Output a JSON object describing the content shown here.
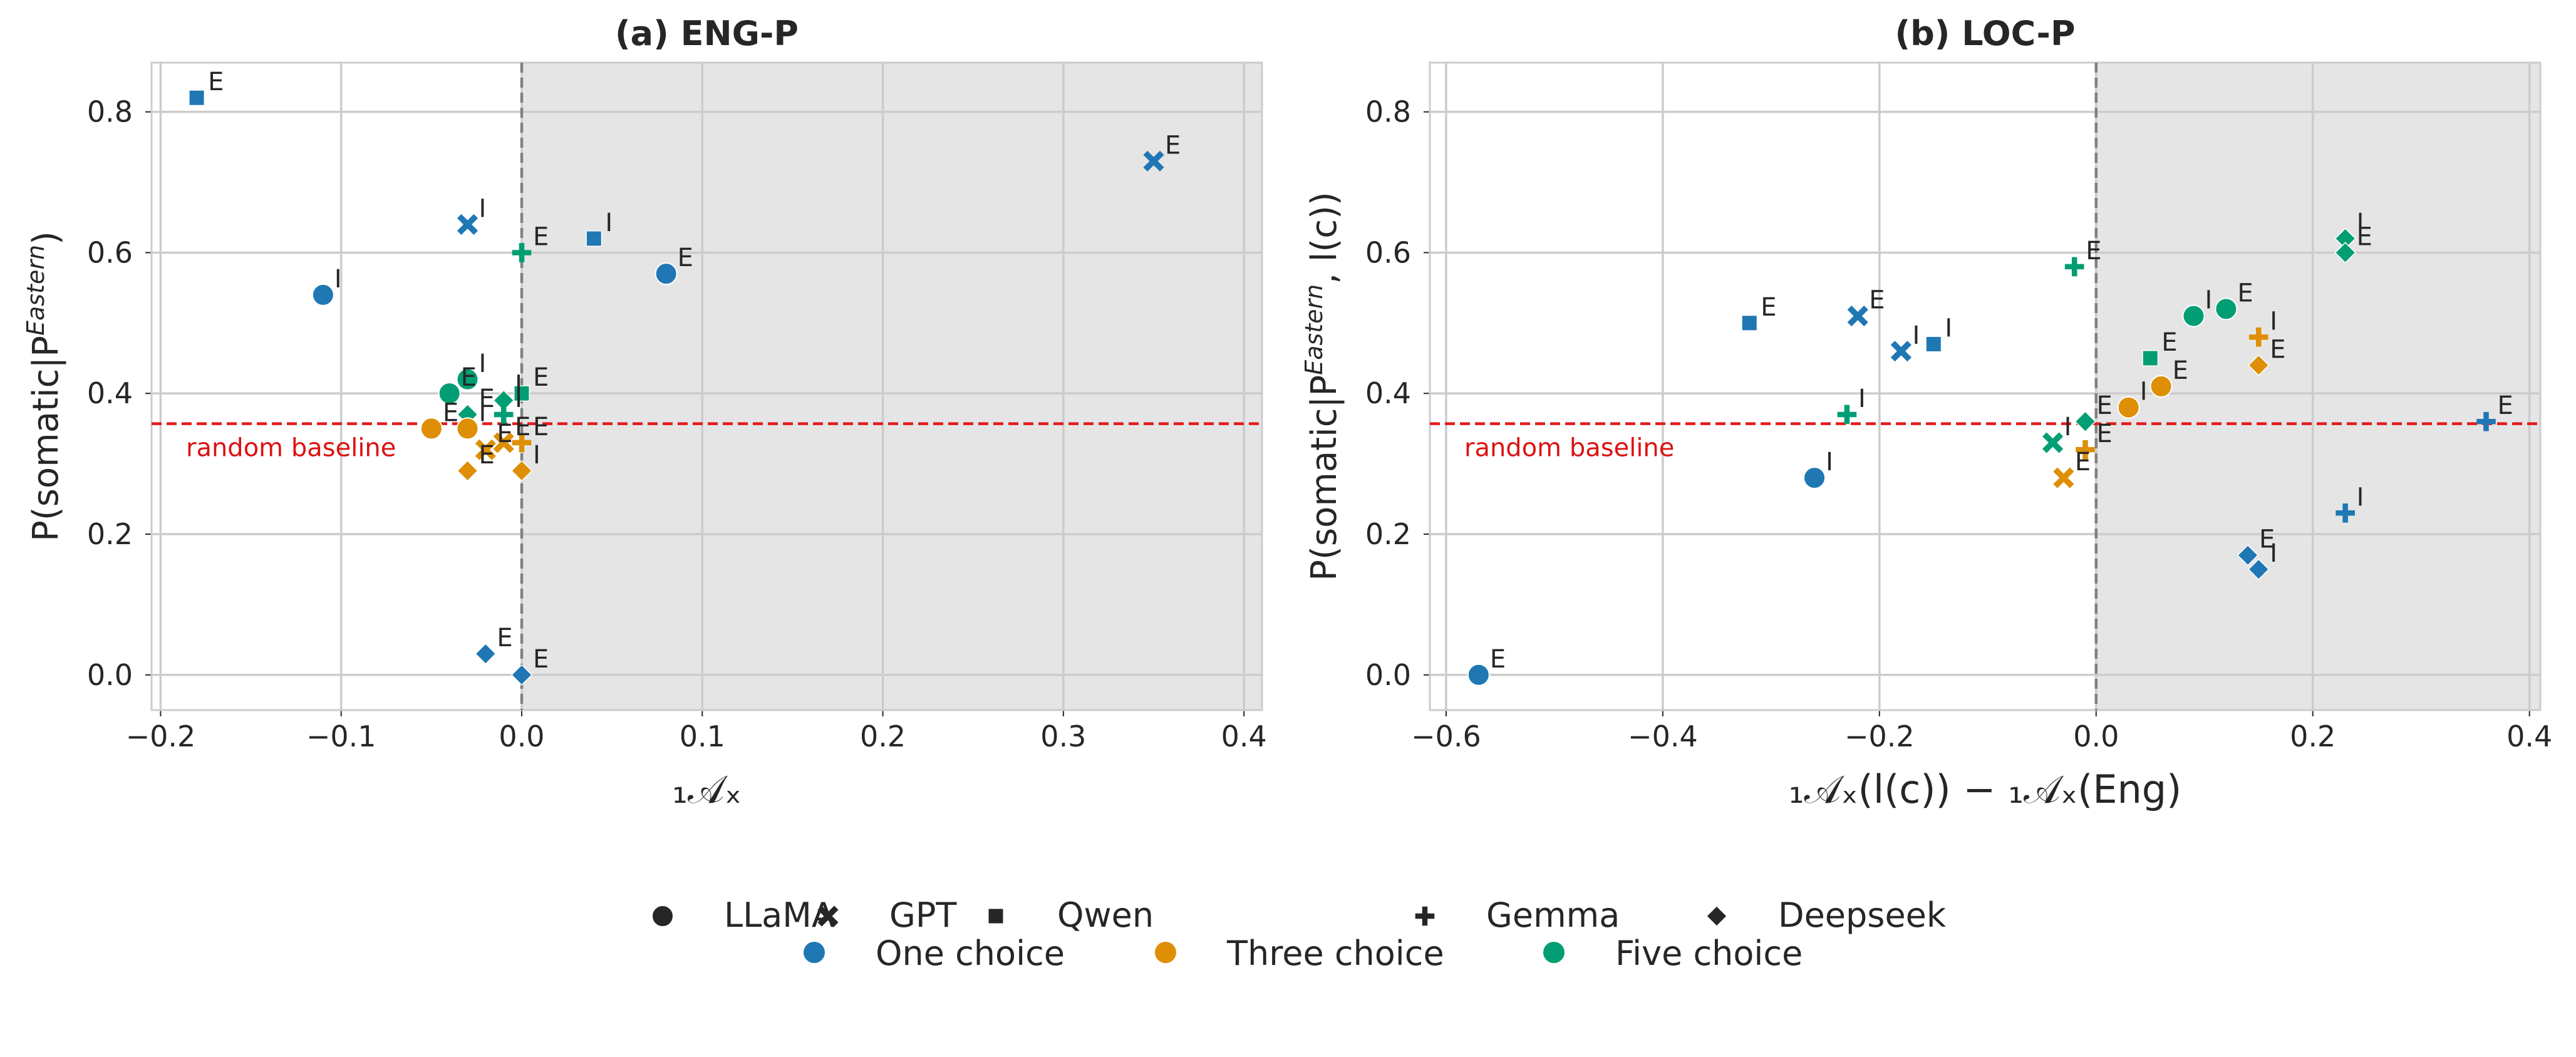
{
  "colors": {
    "one_choice": "#1f77b4",
    "three_choice": "#de8f05",
    "five_choice": "#029e73",
    "baseline": "#e41a1c",
    "shade": "#e5e5e5",
    "grid": "#cccccc",
    "text": "#262626"
  },
  "legend": {
    "models": [
      {
        "label": "LLaMA",
        "marker": "circle"
      },
      {
        "label": "GPT",
        "marker": "x"
      },
      {
        "label": "Qwen",
        "marker": "square"
      },
      {
        "label": "Gemma",
        "marker": "plus"
      },
      {
        "label": "Deepseek",
        "marker": "diamond"
      }
    ],
    "choices": [
      {
        "label": "One choice",
        "color": "#1f77b4"
      },
      {
        "label": "Three choice",
        "color": "#de8f05"
      },
      {
        "label": "Five choice",
        "color": "#029e73"
      }
    ]
  },
  "chart_data": [
    {
      "type": "scatter",
      "title": "(a) ENG-P",
      "xlabel": "₁𝒜ₓ",
      "ylabel": "P(somatic|P^Eastern)",
      "ylabel_main": "P(somatic|P",
      "ylabel_sup": "Eastern",
      "ylabel_tail": ")",
      "xlim": [
        -0.205,
        0.41
      ],
      "ylim": [
        -0.05,
        0.87
      ],
      "xticks": [
        -0.2,
        -0.1,
        0.0,
        0.1,
        0.2,
        0.3,
        0.4
      ],
      "xtick_labels": [
        "−0.2",
        "−0.1",
        "0.0",
        "0.1",
        "0.2",
        "0.3",
        "0.4"
      ],
      "yticks": [
        0.0,
        0.2,
        0.4,
        0.6,
        0.8
      ],
      "ytick_labels": [
        "0.0",
        "0.2",
        "0.4",
        "0.6",
        "0.8"
      ],
      "shaded_from_x": 0.0,
      "vline_x": 0.0,
      "baseline_y": 0.357,
      "baseline_label": "random baseline",
      "points": [
        {
          "model": "Qwen",
          "choice": "one",
          "x": -0.18,
          "y": 0.82,
          "label": "E"
        },
        {
          "model": "GPT",
          "choice": "one",
          "x": 0.35,
          "y": 0.73,
          "label": "E"
        },
        {
          "model": "GPT",
          "choice": "one",
          "x": -0.03,
          "y": 0.64,
          "label": "I"
        },
        {
          "model": "Qwen",
          "choice": "one",
          "x": 0.04,
          "y": 0.62,
          "label": "I"
        },
        {
          "model": "Gemma",
          "choice": "five",
          "x": 0.0,
          "y": 0.6,
          "label": "E"
        },
        {
          "model": "LLaMA",
          "choice": "one",
          "x": 0.08,
          "y": 0.57,
          "label": "E"
        },
        {
          "model": "LLaMA",
          "choice": "one",
          "x": -0.11,
          "y": 0.54,
          "label": "I"
        },
        {
          "model": "LLaMA",
          "choice": "five",
          "x": -0.03,
          "y": 0.42,
          "label": "I"
        },
        {
          "model": "LLaMA",
          "choice": "five",
          "x": -0.04,
          "y": 0.4,
          "label": "E"
        },
        {
          "model": "Qwen",
          "choice": "five",
          "x": 0.0,
          "y": 0.4,
          "label": "E"
        },
        {
          "model": "Deepseek",
          "choice": "five",
          "x": -0.01,
          "y": 0.39,
          "label": "I"
        },
        {
          "model": "Deepseek",
          "choice": "five",
          "x": -0.03,
          "y": 0.37,
          "label": "E"
        },
        {
          "model": "Gemma",
          "choice": "five",
          "x": -0.01,
          "y": 0.37,
          "label": "I"
        },
        {
          "model": "LLaMA",
          "choice": "three",
          "x": -0.05,
          "y": 0.35,
          "label": "E"
        },
        {
          "model": "LLaMA",
          "choice": "three",
          "x": -0.03,
          "y": 0.35,
          "label": "I"
        },
        {
          "model": "Gemma",
          "choice": "three",
          "x": 0.0,
          "y": 0.33,
          "label": "E"
        },
        {
          "model": "GPT",
          "choice": "three",
          "x": -0.01,
          "y": 0.33,
          "label": "E"
        },
        {
          "model": "GPT",
          "choice": "three",
          "x": -0.02,
          "y": 0.32,
          "label": "E"
        },
        {
          "model": "Deepseek",
          "choice": "three",
          "x": -0.03,
          "y": 0.29,
          "label": "E"
        },
        {
          "model": "Deepseek",
          "choice": "three",
          "x": 0.0,
          "y": 0.29,
          "label": "I"
        },
        {
          "model": "Deepseek",
          "choice": "one",
          "x": -0.02,
          "y": 0.03,
          "label": "E"
        },
        {
          "model": "Deepseek",
          "choice": "one",
          "x": 0.0,
          "y": 0.0,
          "label": "E"
        }
      ]
    },
    {
      "type": "scatter",
      "title": "(b) LOC-P",
      "xlabel": "₁𝒜ₓ(l(c)) − ₁𝒜ₓ(Eng)",
      "ylabel": "P(somatic|P^Eastern, l(c))",
      "ylabel_main": "P(somatic|P",
      "ylabel_sup": "Eastern",
      "ylabel_tail": ", l(c))",
      "xlim": [
        -0.615,
        0.41
      ],
      "ylim": [
        -0.05,
        0.87
      ],
      "xticks": [
        -0.6,
        -0.4,
        -0.2,
        0.0,
        0.2,
        0.4
      ],
      "xtick_labels": [
        "−0.6",
        "−0.4",
        "−0.2",
        "0.0",
        "0.2",
        "0.4"
      ],
      "yticks": [
        0.0,
        0.2,
        0.4,
        0.6,
        0.8
      ],
      "ytick_labels": [
        "0.0",
        "0.2",
        "0.4",
        "0.6",
        "0.8"
      ],
      "shaded_from_x": 0.0,
      "vline_x": 0.0,
      "baseline_y": 0.357,
      "baseline_label": "random baseline",
      "points": [
        {
          "model": "Deepseek",
          "choice": "five",
          "x": 0.23,
          "y": 0.62,
          "label": "I"
        },
        {
          "model": "Deepseek",
          "choice": "five",
          "x": 0.23,
          "y": 0.6,
          "label": "E"
        },
        {
          "model": "Gemma",
          "choice": "five",
          "x": -0.02,
          "y": 0.58,
          "label": "E"
        },
        {
          "model": "LLaMA",
          "choice": "five",
          "x": 0.12,
          "y": 0.52,
          "label": "E"
        },
        {
          "model": "LLaMA",
          "choice": "five",
          "x": 0.09,
          "y": 0.51,
          "label": "I"
        },
        {
          "model": "GPT",
          "choice": "one",
          "x": -0.22,
          "y": 0.51,
          "label": "E"
        },
        {
          "model": "Qwen",
          "choice": "one",
          "x": -0.32,
          "y": 0.5,
          "label": "E"
        },
        {
          "model": "Gemma",
          "choice": "three",
          "x": 0.15,
          "y": 0.48,
          "label": "I"
        },
        {
          "model": "Qwen",
          "choice": "one",
          "x": -0.15,
          "y": 0.47,
          "label": "I"
        },
        {
          "model": "GPT",
          "choice": "one",
          "x": -0.18,
          "y": 0.46,
          "label": "I"
        },
        {
          "model": "Qwen",
          "choice": "five",
          "x": 0.05,
          "y": 0.45,
          "label": "E"
        },
        {
          "model": "Deepseek",
          "choice": "three",
          "x": 0.15,
          "y": 0.44,
          "label": "E"
        },
        {
          "model": "LLaMA",
          "choice": "three",
          "x": 0.06,
          "y": 0.41,
          "label": "E"
        },
        {
          "model": "LLaMA",
          "choice": "three",
          "x": 0.03,
          "y": 0.38,
          "label": "I"
        },
        {
          "model": "Gemma",
          "choice": "five",
          "x": -0.23,
          "y": 0.37,
          "label": "I"
        },
        {
          "model": "Deepseek",
          "choice": "five",
          "x": -0.01,
          "y": 0.36,
          "label": "E"
        },
        {
          "model": "Gemma",
          "choice": "one",
          "x": 0.36,
          "y": 0.36,
          "label": "E"
        },
        {
          "model": "GPT",
          "choice": "five",
          "x": -0.04,
          "y": 0.33,
          "label": "I"
        },
        {
          "model": "Gemma",
          "choice": "three",
          "x": -0.01,
          "y": 0.32,
          "label": "E"
        },
        {
          "model": "GPT",
          "choice": "three",
          "x": -0.03,
          "y": 0.28,
          "label": "E"
        },
        {
          "model": "LLaMA",
          "choice": "one",
          "x": -0.26,
          "y": 0.28,
          "label": "I"
        },
        {
          "model": "Gemma",
          "choice": "one",
          "x": 0.23,
          "y": 0.23,
          "label": "I"
        },
        {
          "model": "Deepseek",
          "choice": "one",
          "x": 0.14,
          "y": 0.17,
          "label": "E"
        },
        {
          "model": "Deepseek",
          "choice": "one",
          "x": 0.15,
          "y": 0.15,
          "label": "I"
        },
        {
          "model": "LLaMA",
          "choice": "one",
          "x": -0.57,
          "y": 0.0,
          "label": "E"
        }
      ]
    }
  ]
}
